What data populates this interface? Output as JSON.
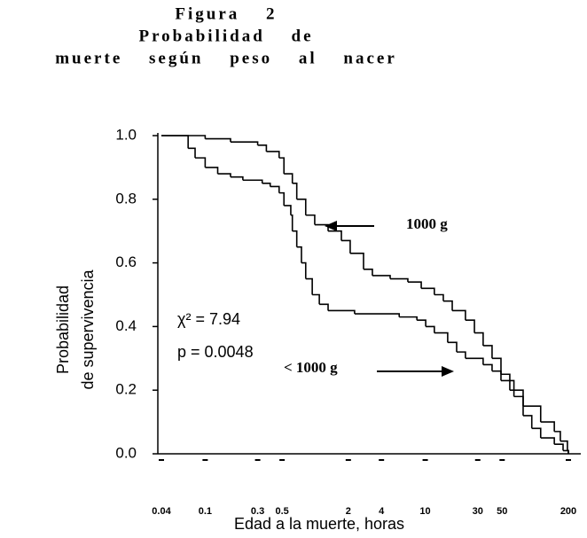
{
  "chart_data": {
    "type": "step",
    "title": [
      "Figura 2",
      "Probabilidad de",
      "muerte según peso al nacer"
    ],
    "x_label": "Edad a la muerte, horas",
    "y_label": [
      "Probabilidad",
      "de supervivencia"
    ],
    "annotations": [
      "χ² = 7.94",
      "p = 0.0048"
    ],
    "log_x": true,
    "xlim": [
      0.04,
      200
    ],
    "xticks": [
      0.04,
      0.1,
      0.3,
      0.5,
      2,
      4,
      10,
      30,
      50,
      200
    ],
    "ylim": [
      0,
      1
    ],
    "yticks": [
      {
        "value": 1,
        "label": "1.0"
      },
      0.8,
      0.6,
      0.4,
      0.2,
      {
        "value": 0,
        "label": "0.0"
      }
    ],
    "series": [
      {
        "name": "1000 g",
        "color": "#000000",
        "x": [
          0.04,
          0.1,
          0.17,
          0.3,
          0.36,
          0.47,
          0.52,
          0.62,
          0.68,
          0.82,
          0.99,
          1.31,
          1.73,
          2.08,
          2.75,
          3.31,
          4.8,
          6.95,
          9.2,
          12.1,
          14.6,
          17.6,
          23.2,
          28,
          33.6,
          40.5,
          48.8,
          58.7,
          77.6,
          112,
          149,
          169,
          196,
          200
        ],
        "values": [
          1.0,
          0.99,
          0.98,
          0.97,
          0.95,
          0.93,
          0.88,
          0.85,
          0.8,
          0.75,
          0.72,
          0.7,
          0.67,
          0.63,
          0.58,
          0.56,
          0.55,
          0.54,
          0.52,
          0.5,
          0.48,
          0.45,
          0.42,
          0.38,
          0.34,
          0.3,
          0.25,
          0.2,
          0.15,
          0.1,
          0.07,
          0.04,
          0.01,
          0.0
        ]
      },
      {
        "name": "< 1000 g",
        "color": "#000000",
        "x": [
          0.04,
          0.07,
          0.081,
          0.1,
          0.13,
          0.17,
          0.22,
          0.33,
          0.39,
          0.47,
          0.52,
          0.6,
          0.62,
          0.68,
          0.75,
          0.82,
          0.94,
          1.09,
          1.31,
          2.28,
          5.8,
          8.4,
          10.1,
          12.1,
          16,
          19.3,
          23.2,
          33.6,
          40.5,
          48.8,
          64,
          77.6,
          93,
          112,
          149,
          179,
          200
        ],
        "values": [
          1.0,
          0.96,
          0.93,
          0.9,
          0.88,
          0.87,
          0.86,
          0.85,
          0.84,
          0.82,
          0.78,
          0.75,
          0.7,
          0.65,
          0.6,
          0.55,
          0.5,
          0.47,
          0.45,
          0.44,
          0.43,
          0.42,
          0.4,
          0.38,
          0.35,
          0.32,
          0.3,
          0.28,
          0.26,
          0.23,
          0.18,
          0.12,
          0.08,
          0.05,
          0.03,
          0.01,
          0.0
        ]
      }
    ]
  }
}
